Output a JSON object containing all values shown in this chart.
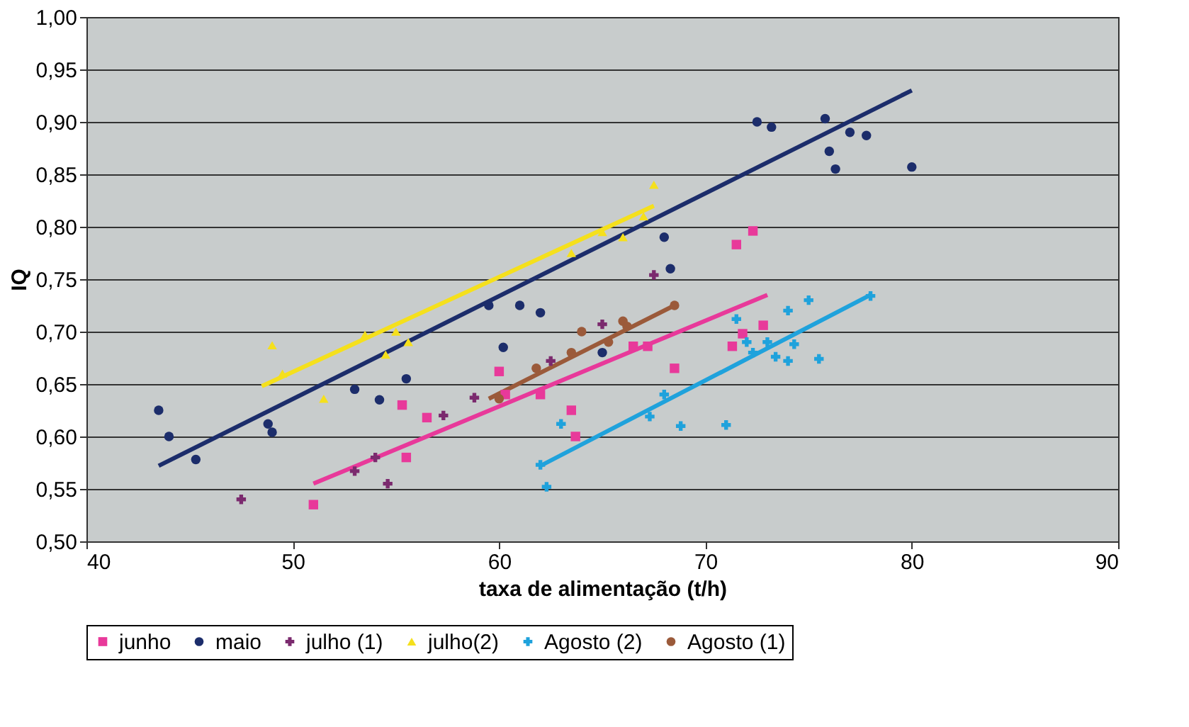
{
  "chart_data": {
    "type": "scatter",
    "xlabel": "taxa de alimentação (t/h)",
    "ylabel": "IQ",
    "xlim": [
      40,
      90
    ],
    "xticks": [
      40,
      50,
      60,
      70,
      80,
      90
    ],
    "ylim": [
      0.5,
      1.0
    ],
    "yticks": [
      {
        "value": 0.5,
        "label": "0,50"
      },
      {
        "value": 0.55,
        "label": "0,55"
      },
      {
        "value": 0.6,
        "label": "0,60"
      },
      {
        "value": 0.65,
        "label": "0,65"
      },
      {
        "value": 0.7,
        "label": "0,70"
      },
      {
        "value": 0.75,
        "label": "0,75"
      },
      {
        "value": 0.8,
        "label": "0,80"
      },
      {
        "value": 0.85,
        "label": "0,85"
      },
      {
        "value": 0.9,
        "label": "0,90"
      },
      {
        "value": 0.95,
        "label": "0,95"
      },
      {
        "value": 1.0,
        "label": "1,00"
      }
    ],
    "grid": "y",
    "legend": "bottom",
    "series": [
      {
        "name": "junho",
        "color": "#e8399a",
        "marker": "square",
        "x": [
          51,
          55.3,
          55.5,
          56.5,
          60,
          60.3,
          62,
          63.5,
          63.7,
          66.5,
          67.2,
          68.5,
          71.3,
          71.5,
          72.3,
          72.8,
          71.8
        ],
        "values": [
          0.535,
          0.63,
          0.58,
          0.618,
          0.662,
          0.64,
          0.64,
          0.625,
          0.6,
          0.686,
          0.686,
          0.665,
          0.686,
          0.783,
          0.796,
          0.706,
          0.698
        ]
      },
      {
        "name": "maio",
        "color": "#1c2d6b",
        "marker": "circle",
        "x": [
          43.5,
          44,
          45.3,
          48.8,
          49,
          53,
          54.2,
          55.5,
          59.5,
          60.2,
          61,
          62,
          65,
          68,
          68.3,
          72.5,
          73.2,
          75.8,
          76,
          76.3,
          77,
          77.8,
          80
        ],
        "values": [
          0.625,
          0.6,
          0.578,
          0.612,
          0.604,
          0.645,
          0.635,
          0.655,
          0.725,
          0.685,
          0.725,
          0.718,
          0.68,
          0.79,
          0.76,
          0.9,
          0.895,
          0.903,
          0.872,
          0.855,
          0.89,
          0.887,
          0.857
        ]
      },
      {
        "name": "julho (1)",
        "color": "#7b2a6e",
        "marker": "cross",
        "x": [
          47.5,
          53,
          54.6,
          54,
          57.3,
          58.8,
          62.5,
          65,
          67.5
        ],
        "values": [
          0.54,
          0.567,
          0.555,
          0.58,
          0.62,
          0.637,
          0.672,
          0.707,
          0.754
        ]
      },
      {
        "name": "julho(2)",
        "color": "#f5e01c",
        "marker": "triangle",
        "x": [
          49,
          49.5,
          51.5,
          53.5,
          54.5,
          55,
          55.6,
          63.5,
          65,
          66,
          67,
          67.5
        ],
        "values": [
          0.687,
          0.66,
          0.636,
          0.697,
          0.678,
          0.7,
          0.69,
          0.775,
          0.795,
          0.79,
          0.81,
          0.84
        ]
      },
      {
        "name": "Agosto (2)",
        "color": "#1fa2dc",
        "marker": "cross",
        "x": [
          62,
          62.3,
          63,
          67.3,
          68,
          68.8,
          71,
          71.5,
          72,
          72.3,
          73,
          73.4,
          74,
          74,
          74.3,
          75,
          75.5,
          78
        ],
        "values": [
          0.573,
          0.552,
          0.612,
          0.619,
          0.64,
          0.61,
          0.611,
          0.712,
          0.69,
          0.68,
          0.69,
          0.676,
          0.672,
          0.72,
          0.688,
          0.73,
          0.674,
          0.734
        ]
      },
      {
        "name": "Agosto (1)",
        "color": "#9b5a3a",
        "marker": "circle",
        "x": [
          60,
          61.8,
          63.5,
          64,
          65.3,
          66,
          66.2,
          68.5
        ],
        "values": [
          0.636,
          0.665,
          0.68,
          0.7,
          0.69,
          0.71,
          0.705,
          0.725
        ]
      },
      {
        "type": "line",
        "color": "#e8399a",
        "x": [
          51,
          73
        ],
        "values": [
          0.555,
          0.735
        ]
      },
      {
        "type": "line",
        "color": "#1c2d6b",
        "x": [
          43.5,
          80
        ],
        "values": [
          0.572,
          0.93
        ]
      },
      {
        "type": "line",
        "color": "#f5e01c",
        "x": [
          48.5,
          67.5
        ],
        "values": [
          0.648,
          0.82
        ]
      },
      {
        "type": "line",
        "color": "#1fa2dc",
        "x": [
          62,
          78
        ],
        "values": [
          0.572,
          0.735
        ]
      },
      {
        "type": "line",
        "color": "#9b5a3a",
        "x": [
          59.5,
          68.5
        ],
        "values": [
          0.636,
          0.725
        ]
      }
    ]
  }
}
